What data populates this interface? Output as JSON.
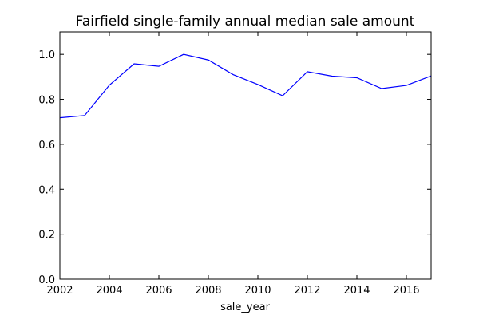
{
  "chart_data": {
    "type": "line",
    "title": "Fairfield single-family annual median sale amount",
    "xlabel": "sale_year",
    "ylabel": "",
    "xlim": [
      2002,
      2017
    ],
    "ylim": [
      0.0,
      1.1
    ],
    "grid": false,
    "legend": "none",
    "x_ticks": [
      2002,
      2004,
      2006,
      2008,
      2010,
      2012,
      2014,
      2016
    ],
    "x_tick_labels": [
      "2002",
      "2004",
      "2006",
      "2008",
      "2010",
      "2012",
      "2014",
      "2016"
    ],
    "y_ticks": [
      0.0,
      0.2,
      0.4,
      0.6,
      0.8,
      1.0
    ],
    "y_tick_labels": [
      "0.0",
      "0.2",
      "0.4",
      "0.6",
      "0.8",
      "1.0"
    ],
    "series": [
      {
        "color": "#0000ff",
        "x": [
          2002,
          2003,
          2004,
          2005,
          2006,
          2007,
          2008,
          2009,
          2010,
          2011,
          2012,
          2013,
          2014,
          2015,
          2016,
          2017
        ],
        "y": [
          0.718,
          0.728,
          0.863,
          0.958,
          0.947,
          1.0,
          0.975,
          0.91,
          0.866,
          0.816,
          0.923,
          0.903,
          0.896,
          0.848,
          0.862,
          0.904
        ]
      }
    ]
  }
}
